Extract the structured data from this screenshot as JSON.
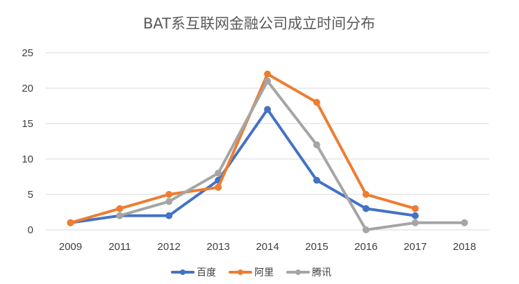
{
  "chart_data": {
    "type": "line",
    "title": "BAT系互联网金融公司成立时间分布",
    "categories": [
      "2009",
      "2011",
      "2012",
      "2013",
      "2014",
      "2015",
      "2016",
      "2017",
      "2018"
    ],
    "ylim": [
      0,
      25
    ],
    "yticks": [
      "0",
      "5",
      "10",
      "15",
      "20",
      "25"
    ],
    "grid": true,
    "legend_position": "bottom",
    "series": [
      {
        "name": "百度",
        "color": "#4472c4",
        "values": [
          1,
          2,
          2,
          7,
          17,
          7,
          3,
          2,
          null
        ]
      },
      {
        "name": "阿里",
        "color": "#ed7d31",
        "values": [
          1,
          3,
          5,
          6,
          22,
          18,
          5,
          3,
          null
        ]
      },
      {
        "name": "腾讯",
        "color": "#a5a5a5",
        "values": [
          null,
          2,
          4,
          8,
          21,
          12,
          0,
          1,
          1
        ]
      }
    ]
  }
}
